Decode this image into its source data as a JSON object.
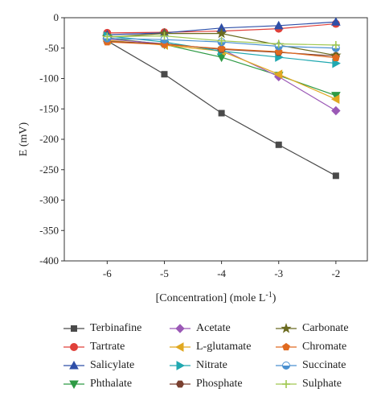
{
  "chart_data": {
    "type": "line",
    "xlabel": "[Concentration] (mole L",
    "xlabel_sup": "-1",
    "xlabel_suffix": ")",
    "ylabel": "E (mV)",
    "x": [
      -6,
      -5,
      -4,
      -3,
      -2
    ],
    "xlim": [
      -6.75,
      -1.45
    ],
    "ylim": [
      -400,
      0
    ],
    "xticks": [
      -6,
      -5,
      -4,
      -3,
      -2
    ],
    "yticks": [
      0,
      -50,
      -100,
      -150,
      -200,
      -250,
      -300,
      -350,
      -400
    ],
    "grid": false,
    "legend_position": "bottom",
    "series": [
      {
        "name": "Terbinafine",
        "marker": "square",
        "color": "#4a4a4a",
        "values": [
          -38,
          -93,
          -157,
          -209,
          -260
        ]
      },
      {
        "name": "Tartrate",
        "marker": "circle",
        "color": "#e0403a",
        "values": [
          -25,
          -24,
          -22,
          -18,
          -10
        ]
      },
      {
        "name": "Salicylate",
        "marker": "triangle-up",
        "color": "#2f4fa8",
        "values": [
          -28,
          -25,
          -17,
          -13,
          -7
        ]
      },
      {
        "name": "Phthalate",
        "marker": "triangle-down",
        "color": "#2e9a44",
        "values": [
          -33,
          -44,
          -65,
          -95,
          -128
        ]
      },
      {
        "name": "Acetate",
        "marker": "diamond",
        "color": "#9b59b6",
        "values": [
          -35,
          -43,
          -52,
          -97,
          -153
        ]
      },
      {
        "name": "L-glutamate",
        "marker": "triangle-left",
        "color": "#e0a820",
        "values": [
          -37,
          -45,
          -55,
          -93,
          -134
        ]
      },
      {
        "name": "Nitrate",
        "marker": "triangle-right",
        "color": "#20a8b0",
        "values": [
          -30,
          -40,
          -55,
          -65,
          -75
        ]
      },
      {
        "name": "Phosphate",
        "marker": "hexagon",
        "color": "#7a4030",
        "values": [
          -39,
          -43,
          -52,
          -57,
          -63
        ]
      },
      {
        "name": "Carbonate",
        "marker": "star",
        "color": "#6b6b20",
        "values": [
          -32,
          -26,
          -26,
          -45,
          -62
        ]
      },
      {
        "name": "Chromate",
        "marker": "pentagon",
        "color": "#e06a20",
        "values": [
          -40,
          -44,
          -51,
          -56,
          -66
        ]
      },
      {
        "name": "Succinate",
        "marker": "circle-half",
        "color": "#4a90d0",
        "values": [
          -34,
          -36,
          -40,
          -47,
          -50
        ]
      },
      {
        "name": "Sulphate",
        "marker": "plus",
        "color": "#a0c850",
        "values": [
          -31,
          -30,
          -38,
          -43,
          -45
        ]
      }
    ]
  }
}
